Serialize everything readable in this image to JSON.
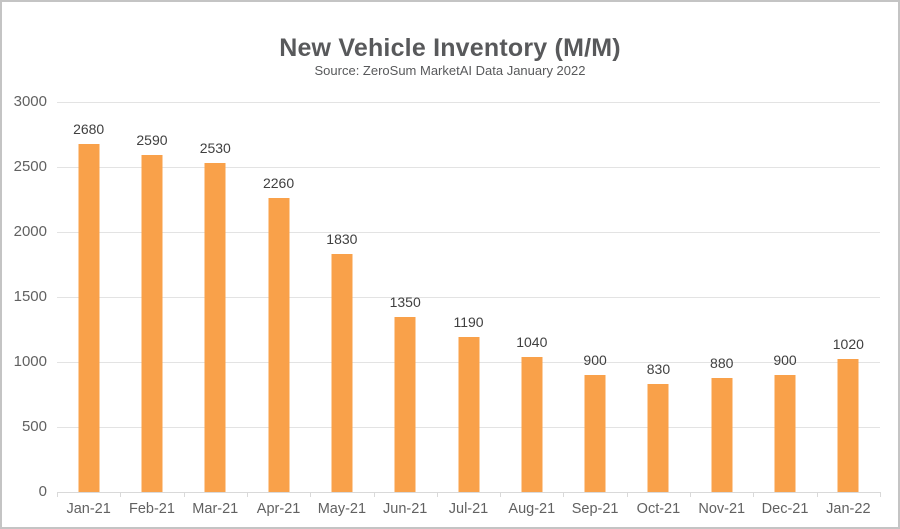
{
  "page": {
    "background_color": "#ffffff",
    "frame_border_color": "#c4c4c4"
  },
  "chart_data": {
    "type": "bar",
    "title": "New Vehicle Inventory (M/M)",
    "subtitle": "Source: ZeroSum MarketAI Data January 2022",
    "categories": [
      "Jan-21",
      "Feb-21",
      "Mar-21",
      "Apr-21",
      "May-21",
      "Jun-21",
      "Jul-21",
      "Aug-21",
      "Sep-21",
      "Oct-21",
      "Nov-21",
      "Dec-21",
      "Jan-22"
    ],
    "values": [
      2680,
      2590,
      2530,
      2260,
      1830,
      1350,
      1190,
      1040,
      900,
      830,
      880,
      900,
      1020
    ],
    "value_labels": [
      "2680",
      "2590",
      "2530",
      "2260",
      "1830",
      "1350",
      "1190",
      "1040",
      "900",
      "830",
      "880",
      "900",
      "1020"
    ],
    "xlabel": "",
    "ylabel": "",
    "ylim": [
      0,
      3000
    ],
    "y_ticks": [
      0,
      500,
      1000,
      1500,
      2000,
      2500,
      3000
    ],
    "y_tick_labels": [
      "0",
      "500",
      "1000",
      "1500",
      "2000",
      "2500",
      "3000"
    ],
    "grid": true,
    "legend": "none",
    "colors": {
      "bar": "#f9a14a",
      "title": "#58595b",
      "value_label": "#404040",
      "axis_label": "#616161",
      "gridline": "#e3e3e3",
      "baseline": "#d9d9d9"
    }
  }
}
